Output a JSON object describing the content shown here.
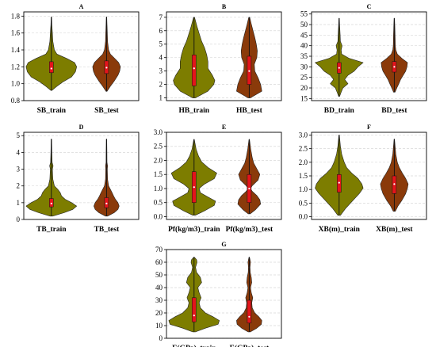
{
  "colors": {
    "train": "#7d7d00",
    "test": "#8a3a0a",
    "box": "#e4141b",
    "grid": "#d9d9d9"
  },
  "chart_data": [
    {
      "type": "violin",
      "title": "A",
      "categories": [
        "SB_train",
        "SB_test"
      ],
      "ylim": [
        0.8,
        1.85
      ],
      "yticks": [
        0.8,
        1.0,
        1.2,
        1.4,
        1.6,
        1.8
      ],
      "series": [
        {
          "min": 0.92,
          "q1": 1.13,
          "median": 1.18,
          "q3": 1.26,
          "max": 1.79,
          "density": [
            [
              0.92,
              0.02
            ],
            [
              0.97,
              0.22
            ],
            [
              1.02,
              0.45
            ],
            [
              1.08,
              0.8
            ],
            [
              1.14,
              0.95
            ],
            [
              1.2,
              1.0
            ],
            [
              1.25,
              0.92
            ],
            [
              1.3,
              0.6
            ],
            [
              1.35,
              0.22
            ],
            [
              1.4,
              0.12
            ],
            [
              1.5,
              0.06
            ],
            [
              1.6,
              0.04
            ],
            [
              1.7,
              0.02
            ],
            [
              1.79,
              0.01
            ]
          ]
        },
        {
          "min": 0.91,
          "q1": 1.12,
          "median": 1.19,
          "q3": 1.27,
          "max": 1.79,
          "density": [
            [
              0.91,
              0.02
            ],
            [
              0.97,
              0.15
            ],
            [
              1.03,
              0.3
            ],
            [
              1.1,
              0.45
            ],
            [
              1.15,
              0.52
            ],
            [
              1.2,
              0.55
            ],
            [
              1.25,
              0.48
            ],
            [
              1.3,
              0.32
            ],
            [
              1.35,
              0.15
            ],
            [
              1.4,
              0.08
            ],
            [
              1.5,
              0.04
            ],
            [
              1.6,
              0.03
            ],
            [
              1.7,
              0.02
            ],
            [
              1.79,
              0.01
            ]
          ]
        }
      ]
    },
    {
      "type": "violin",
      "title": "B",
      "categories": [
        "HB_train",
        "HB_test"
      ],
      "ylim": [
        0.8,
        7.4
      ],
      "yticks": [
        1,
        2,
        3,
        4,
        5,
        6,
        7
      ],
      "series": [
        {
          "min": 1.0,
          "q1": 1.9,
          "median": 3.2,
          "q3": 4.2,
          "max": 7.0,
          "density": [
            [
              1.0,
              0.05
            ],
            [
              1.5,
              0.55
            ],
            [
              2.0,
              0.78
            ],
            [
              2.3,
              0.82
            ],
            [
              2.7,
              0.72
            ],
            [
              3.2,
              0.55
            ],
            [
              3.7,
              0.55
            ],
            [
              4.2,
              0.5
            ],
            [
              4.7,
              0.42
            ],
            [
              5.2,
              0.3
            ],
            [
              5.8,
              0.2
            ],
            [
              6.3,
              0.12
            ],
            [
              7.0,
              0.02
            ]
          ]
        },
        {
          "min": 1.0,
          "q1": 2.0,
          "median": 3.0,
          "q3": 4.1,
          "max": 7.0,
          "density": [
            [
              1.0,
              0.04
            ],
            [
              1.5,
              0.5
            ],
            [
              2.0,
              0.45
            ],
            [
              2.5,
              0.35
            ],
            [
              3.0,
              0.22
            ],
            [
              3.5,
              0.2
            ],
            [
              4.0,
              0.3
            ],
            [
              4.5,
              0.32
            ],
            [
              5.0,
              0.28
            ],
            [
              5.5,
              0.22
            ],
            [
              6.0,
              0.15
            ],
            [
              6.5,
              0.08
            ],
            [
              7.0,
              0.02
            ]
          ]
        }
      ]
    },
    {
      "type": "violin",
      "title": "C",
      "categories": [
        "BD_train",
        "BD_test"
      ],
      "ylim": [
        14,
        56
      ],
      "yticks": [
        15,
        20,
        25,
        30,
        35,
        40,
        45,
        50,
        55
      ],
      "series": [
        {
          "min": 16.0,
          "q1": 27.0,
          "median": 29.5,
          "q3": 32.0,
          "max": 53.0,
          "density": [
            [
              16,
              0.02
            ],
            [
              18,
              0.08
            ],
            [
              20,
              0.15
            ],
            [
              22,
              0.35
            ],
            [
              24,
              0.22
            ],
            [
              26,
              0.35
            ],
            [
              28,
              0.6
            ],
            [
              30,
              0.75
            ],
            [
              32,
              0.95
            ],
            [
              34,
              0.4
            ],
            [
              36,
              0.1
            ],
            [
              38,
              0.08
            ],
            [
              40,
              0.12
            ],
            [
              42,
              0.05
            ],
            [
              45,
              0.04
            ],
            [
              50,
              0.02
            ],
            [
              53,
              0.01
            ]
          ]
        },
        {
          "min": 18.0,
          "q1": 27.5,
          "median": 30.0,
          "q3": 32.5,
          "max": 53.0,
          "density": [
            [
              18,
              0.03
            ],
            [
              20,
              0.1
            ],
            [
              22,
              0.18
            ],
            [
              24,
              0.25
            ],
            [
              26,
              0.35
            ],
            [
              28,
              0.45
            ],
            [
              30,
              0.5
            ],
            [
              32,
              0.52
            ],
            [
              34,
              0.3
            ],
            [
              36,
              0.12
            ],
            [
              38,
              0.06
            ],
            [
              40,
              0.04
            ],
            [
              45,
              0.03
            ],
            [
              50,
              0.02
            ],
            [
              53,
              0.01
            ]
          ]
        }
      ]
    },
    {
      "type": "violin",
      "title": "D",
      "categories": [
        "TB_train",
        "TB_test"
      ],
      "ylim": [
        0,
        5.2
      ],
      "yticks": [
        0,
        1,
        2,
        3,
        4,
        5
      ],
      "series": [
        {
          "min": 0.2,
          "q1": 0.75,
          "median": 0.95,
          "q3": 1.25,
          "max": 4.8,
          "density": [
            [
              0.2,
              0.05
            ],
            [
              0.4,
              0.5
            ],
            [
              0.6,
              0.85
            ],
            [
              0.8,
              1.0
            ],
            [
              1.0,
              0.8
            ],
            [
              1.2,
              0.55
            ],
            [
              1.4,
              0.4
            ],
            [
              1.6,
              0.35
            ],
            [
              1.8,
              0.25
            ],
            [
              2.0,
              0.12
            ],
            [
              2.4,
              0.06
            ],
            [
              3.0,
              0.04
            ],
            [
              3.2,
              0.07
            ],
            [
              3.4,
              0.03
            ],
            [
              4.0,
              0.02
            ],
            [
              4.8,
              0.01
            ]
          ]
        },
        {
          "min": 0.2,
          "q1": 0.7,
          "median": 0.95,
          "q3": 1.3,
          "max": 4.8,
          "density": [
            [
              0.2,
              0.04
            ],
            [
              0.4,
              0.3
            ],
            [
              0.6,
              0.45
            ],
            [
              0.8,
              0.5
            ],
            [
              1.0,
              0.45
            ],
            [
              1.2,
              0.35
            ],
            [
              1.4,
              0.28
            ],
            [
              1.6,
              0.22
            ],
            [
              1.8,
              0.15
            ],
            [
              2.0,
              0.08
            ],
            [
              2.4,
              0.04
            ],
            [
              3.0,
              0.03
            ],
            [
              3.2,
              0.04
            ],
            [
              3.4,
              0.02
            ],
            [
              4.0,
              0.015
            ],
            [
              4.8,
              0.01
            ]
          ]
        }
      ]
    },
    {
      "type": "violin",
      "title": "E",
      "categories": [
        "Pf(kg/m3)_train",
        "Pf(kg/m3)_test"
      ],
      "ylim": [
        -0.1,
        3.0
      ],
      "yticks": [
        0.0,
        0.5,
        1.0,
        1.5,
        2.0,
        2.5,
        3.0
      ],
      "series": [
        {
          "min": 0.05,
          "q1": 0.5,
          "median": 1.05,
          "q3": 1.6,
          "max": 2.75,
          "density": [
            [
              0.05,
              0.05
            ],
            [
              0.2,
              0.4
            ],
            [
              0.4,
              0.8
            ],
            [
              0.55,
              0.85
            ],
            [
              0.7,
              0.55
            ],
            [
              0.85,
              0.25
            ],
            [
              1.0,
              0.2
            ],
            [
              1.15,
              0.4
            ],
            [
              1.35,
              0.8
            ],
            [
              1.55,
              0.9
            ],
            [
              1.75,
              0.55
            ],
            [
              1.95,
              0.3
            ],
            [
              2.15,
              0.18
            ],
            [
              2.4,
              0.08
            ],
            [
              2.75,
              0.01
            ]
          ]
        },
        {
          "min": 0.1,
          "q1": 0.5,
          "median": 1.0,
          "q3": 1.5,
          "max": 2.75,
          "density": [
            [
              0.1,
              0.04
            ],
            [
              0.25,
              0.25
            ],
            [
              0.45,
              0.45
            ],
            [
              0.6,
              0.42
            ],
            [
              0.75,
              0.3
            ],
            [
              0.9,
              0.12
            ],
            [
              1.0,
              0.05
            ],
            [
              1.1,
              0.12
            ],
            [
              1.3,
              0.35
            ],
            [
              1.5,
              0.42
            ],
            [
              1.7,
              0.3
            ],
            [
              1.9,
              0.18
            ],
            [
              2.1,
              0.12
            ],
            [
              2.4,
              0.06
            ],
            [
              2.75,
              0.01
            ]
          ]
        }
      ]
    },
    {
      "type": "violin",
      "title": "F",
      "categories": [
        "XB(m)_train",
        "XB(m)_test"
      ],
      "ylim": [
        -0.1,
        3.1
      ],
      "yticks": [
        0.0,
        0.5,
        1.0,
        1.5,
        2.0,
        2.5,
        3.0
      ],
      "series": [
        {
          "min": 0.05,
          "q1": 0.9,
          "median": 1.25,
          "q3": 1.55,
          "max": 3.0,
          "density": [
            [
              0.05,
              0.05
            ],
            [
              0.3,
              0.25
            ],
            [
              0.6,
              0.55
            ],
            [
              0.85,
              0.8
            ],
            [
              1.05,
              0.95
            ],
            [
              1.2,
              0.9
            ],
            [
              1.4,
              0.75
            ],
            [
              1.6,
              0.5
            ],
            [
              1.8,
              0.3
            ],
            [
              2.0,
              0.2
            ],
            [
              2.3,
              0.1
            ],
            [
              2.6,
              0.05
            ],
            [
              3.0,
              0.01
            ]
          ]
        },
        {
          "min": 0.2,
          "q1": 0.85,
          "median": 1.2,
          "q3": 1.5,
          "max": 2.85,
          "density": [
            [
              0.2,
              0.04
            ],
            [
              0.4,
              0.15
            ],
            [
              0.6,
              0.3
            ],
            [
              0.85,
              0.45
            ],
            [
              1.05,
              0.52
            ],
            [
              1.2,
              0.55
            ],
            [
              1.4,
              0.45
            ],
            [
              1.6,
              0.32
            ],
            [
              1.8,
              0.2
            ],
            [
              2.0,
              0.12
            ],
            [
              2.3,
              0.06
            ],
            [
              2.6,
              0.03
            ],
            [
              2.85,
              0.01
            ]
          ]
        }
      ]
    },
    {
      "type": "violin",
      "title": "G",
      "categories": [
        "E(GPa)_train",
        "E(GPa)_test"
      ],
      "ylim": [
        0,
        70
      ],
      "yticks": [
        0,
        10,
        20,
        30,
        40,
        50,
        60,
        70
      ],
      "series": [
        {
          "min": 5.0,
          "q1": 13.0,
          "median": 18.0,
          "q3": 32.0,
          "max": 64.0,
          "density": [
            [
              5,
              0.05
            ],
            [
              8,
              0.45
            ],
            [
              11,
              0.95
            ],
            [
              14,
              1.0
            ],
            [
              17,
              0.75
            ],
            [
              20,
              0.45
            ],
            [
              24,
              0.25
            ],
            [
              28,
              0.2
            ],
            [
              32,
              0.28
            ],
            [
              36,
              0.2
            ],
            [
              40,
              0.15
            ],
            [
              44,
              0.3
            ],
            [
              48,
              0.25
            ],
            [
              52,
              0.1
            ],
            [
              56,
              0.06
            ],
            [
              60,
              0.12
            ],
            [
              62,
              0.1
            ],
            [
              64,
              0.01
            ]
          ]
        },
        {
          "min": 5.0,
          "q1": 12.0,
          "median": 17.0,
          "q3": 30.0,
          "max": 64.0,
          "density": [
            [
              5,
              0.04
            ],
            [
              8,
              0.3
            ],
            [
              11,
              0.48
            ],
            [
              14,
              0.5
            ],
            [
              17,
              0.38
            ],
            [
              20,
              0.22
            ],
            [
              24,
              0.12
            ],
            [
              28,
              0.1
            ],
            [
              32,
              0.14
            ],
            [
              36,
              0.08
            ],
            [
              40,
              0.05
            ],
            [
              44,
              0.1
            ],
            [
              48,
              0.08
            ],
            [
              52,
              0.04
            ],
            [
              56,
              0.03
            ],
            [
              60,
              0.05
            ],
            [
              62,
              0.03
            ],
            [
              64,
              0.01
            ]
          ]
        }
      ]
    }
  ]
}
